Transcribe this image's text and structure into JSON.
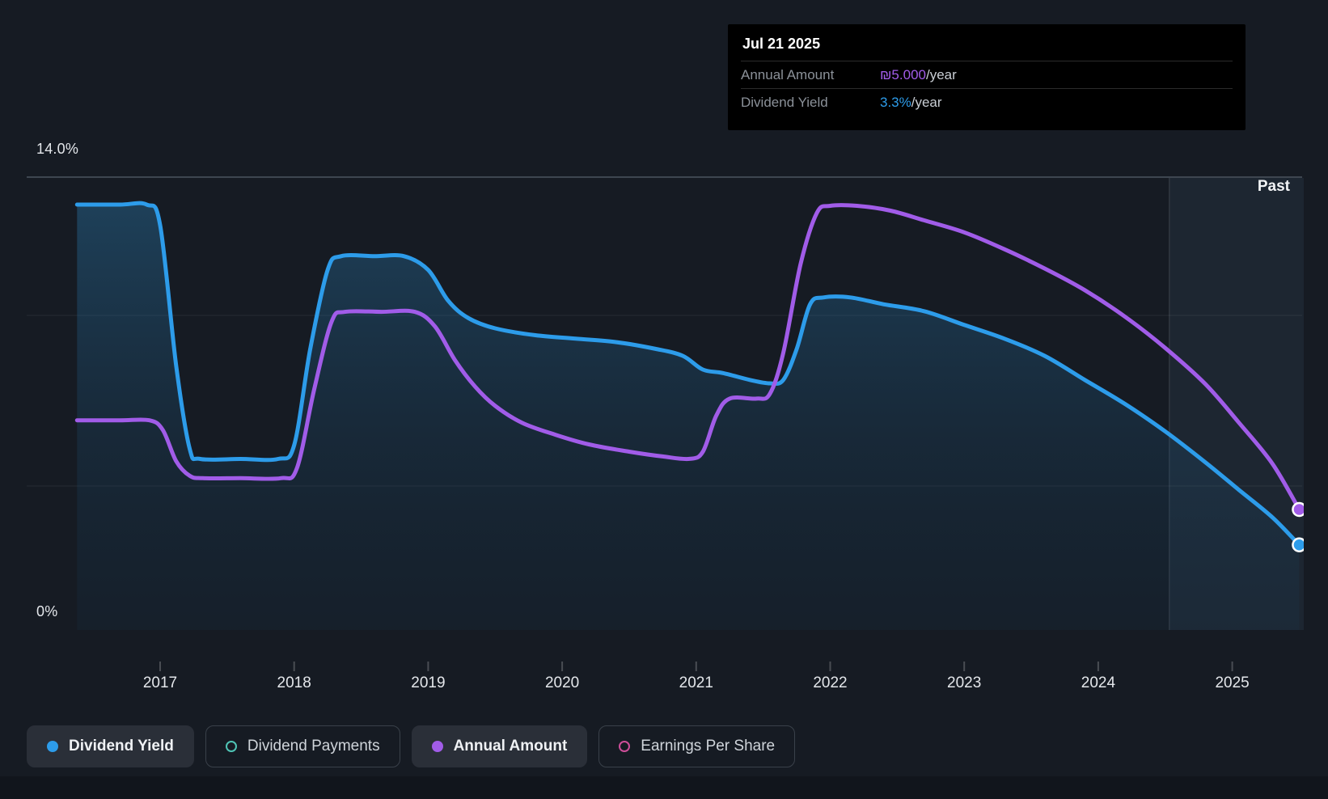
{
  "page": {
    "past_label": "Past"
  },
  "tooltip": {
    "title": "Jul 21 2025",
    "rows": [
      {
        "label": "Annual Amount",
        "value": "₪5.000",
        "suffix": "/year",
        "value_color": "#A15CE8"
      },
      {
        "label": "Dividend Yield",
        "value": "3.3%",
        "suffix": "/year",
        "value_color": "#2D9CEA"
      }
    ]
  },
  "axis": {
    "y_top_label": "14.0%",
    "y_bottom_label": "0%",
    "x_labels": [
      "2017",
      "2018",
      "2019",
      "2020",
      "2021",
      "2022",
      "2023",
      "2024",
      "2025"
    ]
  },
  "legend": {
    "items": [
      {
        "label": "Dividend Yield",
        "color": "#2D9CEA",
        "marker": "filled",
        "active": true
      },
      {
        "label": "Dividend Payments",
        "color": "#4FC4B5",
        "marker": "hollow",
        "active": false
      },
      {
        "label": "Annual Amount",
        "color": "#A15CE8",
        "marker": "filled",
        "active": true
      },
      {
        "label": "Earnings Per Share",
        "color": "#CE4E99",
        "marker": "hollow",
        "active": false
      }
    ]
  },
  "colors": {
    "background": "#161B23",
    "tooltip_bg": "#000000",
    "grid_strong": "#3E4650",
    "blue": "#2D9CEA",
    "purple": "#A15CE8",
    "teal": "#4FC4B5",
    "pink": "#CE4E99"
  },
  "chart_data": {
    "type": "line",
    "title": "Dividend yield and annual dividend amount over time",
    "x_ticks": [
      2017,
      2018,
      2019,
      2020,
      2021,
      2022,
      2023,
      2024,
      2025
    ],
    "x_range": [
      2016.38,
      2025.55
    ],
    "yield_axis": {
      "unit": "%",
      "top_value": 14.0,
      "top_label": "14.0%",
      "bottom_label": "0%"
    },
    "amount_axis": {
      "unit": "₪/year"
    },
    "past_region_start": 2024.53,
    "legend_position": "bottom",
    "grid": "horizontal-faint",
    "tooltip_point": {
      "date": "Jul 21 2025",
      "annual_amount_ils_per_year": 5.0,
      "dividend_yield_pct_per_year": 3.3
    },
    "series": [
      {
        "name": "Dividend Yield",
        "axis": "yield",
        "unit": "%",
        "color": "#2D9CEA",
        "visible": true,
        "area_fill": true,
        "points": [
          [
            2016.38,
            13.2
          ],
          [
            2016.7,
            13.2
          ],
          [
            2016.9,
            13.2
          ],
          [
            2017.0,
            12.6
          ],
          [
            2017.12,
            8.5
          ],
          [
            2017.22,
            6.1
          ],
          [
            2017.3,
            5.8
          ],
          [
            2017.6,
            5.8
          ],
          [
            2017.88,
            5.8
          ],
          [
            2018.0,
            6.2
          ],
          [
            2018.12,
            9.0
          ],
          [
            2018.25,
            11.3
          ],
          [
            2018.35,
            11.7
          ],
          [
            2018.6,
            11.7
          ],
          [
            2018.82,
            11.7
          ],
          [
            2019.0,
            11.3
          ],
          [
            2019.15,
            10.4
          ],
          [
            2019.3,
            9.9
          ],
          [
            2019.5,
            9.6
          ],
          [
            2019.8,
            9.4
          ],
          [
            2020.1,
            9.3
          ],
          [
            2020.4,
            9.2
          ],
          [
            2020.7,
            9.0
          ],
          [
            2020.9,
            8.8
          ],
          [
            2021.05,
            8.4
          ],
          [
            2021.2,
            8.3
          ],
          [
            2021.4,
            8.1
          ],
          [
            2021.55,
            8.0
          ],
          [
            2021.65,
            8.1
          ],
          [
            2021.75,
            9.0
          ],
          [
            2021.85,
            10.3
          ],
          [
            2021.95,
            10.5
          ],
          [
            2022.15,
            10.5
          ],
          [
            2022.4,
            10.3
          ],
          [
            2022.7,
            10.1
          ],
          [
            2023.0,
            9.7
          ],
          [
            2023.3,
            9.3
          ],
          [
            2023.6,
            8.8
          ],
          [
            2023.9,
            8.1
          ],
          [
            2024.2,
            7.4
          ],
          [
            2024.5,
            6.6
          ],
          [
            2024.8,
            5.7
          ],
          [
            2025.05,
            4.9
          ],
          [
            2025.3,
            4.1
          ],
          [
            2025.5,
            3.3
          ]
        ]
      },
      {
        "name": "Annual Amount",
        "axis": "amount",
        "unit": "₪/year",
        "color": "#A15CE8",
        "visible": true,
        "area_fill": false,
        "points": [
          [
            2016.38,
            8.7
          ],
          [
            2016.7,
            8.7
          ],
          [
            2016.92,
            8.7
          ],
          [
            2017.02,
            8.3
          ],
          [
            2017.12,
            7.0
          ],
          [
            2017.22,
            6.4
          ],
          [
            2017.32,
            6.3
          ],
          [
            2017.6,
            6.3
          ],
          [
            2017.9,
            6.3
          ],
          [
            2018.02,
            6.7
          ],
          [
            2018.15,
            10.0
          ],
          [
            2018.28,
            12.8
          ],
          [
            2018.38,
            13.2
          ],
          [
            2018.65,
            13.2
          ],
          [
            2018.9,
            13.2
          ],
          [
            2019.05,
            12.6
          ],
          [
            2019.2,
            11.2
          ],
          [
            2019.35,
            10.1
          ],
          [
            2019.5,
            9.3
          ],
          [
            2019.7,
            8.6
          ],
          [
            2019.95,
            8.1
          ],
          [
            2020.2,
            7.7
          ],
          [
            2020.5,
            7.4
          ],
          [
            2020.75,
            7.2
          ],
          [
            2020.95,
            7.1
          ],
          [
            2021.05,
            7.4
          ],
          [
            2021.15,
            8.9
          ],
          [
            2021.25,
            9.6
          ],
          [
            2021.45,
            9.6
          ],
          [
            2021.55,
            9.8
          ],
          [
            2021.65,
            11.5
          ],
          [
            2021.78,
            15.2
          ],
          [
            2021.9,
            17.3
          ],
          [
            2022.0,
            17.6
          ],
          [
            2022.2,
            17.6
          ],
          [
            2022.45,
            17.4
          ],
          [
            2022.7,
            17.0
          ],
          [
            2023.0,
            16.5
          ],
          [
            2023.3,
            15.8
          ],
          [
            2023.6,
            15.0
          ],
          [
            2023.9,
            14.1
          ],
          [
            2024.2,
            13.0
          ],
          [
            2024.5,
            11.7
          ],
          [
            2024.8,
            10.2
          ],
          [
            2025.05,
            8.6
          ],
          [
            2025.3,
            6.9
          ],
          [
            2025.5,
            5.0
          ]
        ]
      },
      {
        "name": "Dividend Payments",
        "axis": "amount",
        "color": "#4FC4B5",
        "visible": false,
        "points": []
      },
      {
        "name": "Earnings Per Share",
        "axis": "eps",
        "color": "#CE4E99",
        "visible": false,
        "points": []
      }
    ]
  }
}
